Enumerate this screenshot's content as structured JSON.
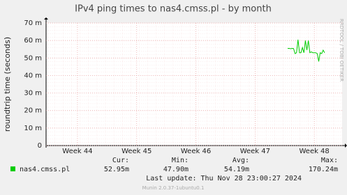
{
  "chart_data": {
    "type": "line",
    "title": "IPv4 ping times to nas4.cmss.pl - by month",
    "y_label": "roundtrip time (seconds)",
    "watermark": "RRDTOOL / TOBI OETIKER",
    "xlim": [
      43.47,
      48.47
    ],
    "xticks": [
      {
        "value": 44,
        "label": "Week 44"
      },
      {
        "value": 45,
        "label": "Week 45"
      },
      {
        "value": 46,
        "label": "Week 46"
      },
      {
        "value": 47,
        "label": "Week 47"
      },
      {
        "value": 48,
        "label": "Week 48"
      }
    ],
    "ylim": [
      0,
      0.07
    ],
    "yticks": [
      0,
      {
        "value": 0.01,
        "label": "10 m"
      },
      {
        "value": 0.02,
        "label": "20 m"
      },
      {
        "value": 0.03,
        "label": "30 m"
      },
      {
        "value": 0.04,
        "label": "40 m"
      },
      {
        "value": 0.05,
        "label": "50 m"
      },
      {
        "value": 0.06,
        "label": "60 m"
      },
      {
        "value": 0.07,
        "label": "70 m"
      }
    ],
    "grid": true,
    "x": [
      47.55,
      47.575,
      47.6,
      47.625,
      47.65,
      47.675,
      47.7,
      47.725,
      47.75,
      47.775,
      47.8,
      47.825,
      47.85,
      47.875,
      47.9,
      47.925,
      47.95,
      47.975,
      48.0,
      48.025,
      48.05,
      48.075,
      48.1,
      48.125,
      48.15,
      48.175
    ],
    "series": [
      {
        "name": "nas4.cmss.pl",
        "color": "#00cc00",
        "values": [
          0.0555,
          0.0555,
          0.0553,
          0.0555,
          0.0554,
          0.0525,
          0.053,
          0.0605,
          0.053,
          0.053,
          0.056,
          0.053,
          0.06,
          0.0545,
          0.06,
          0.053,
          0.0535,
          0.053,
          0.053,
          0.053,
          0.0525,
          0.048,
          0.053,
          0.0525,
          0.0545,
          0.053
        ]
      }
    ],
    "stats": {
      "labels": [
        "Cur:",
        "Min:",
        "Avg:",
        "Max:"
      ],
      "values": [
        "52.95m",
        "47.90m",
        "54.19m",
        "170.24m"
      ]
    },
    "last_update": "Last update: Thu Nov 28 23:00:27 2024",
    "footer": "Munin 2.0.37-1ubuntu0.1"
  }
}
